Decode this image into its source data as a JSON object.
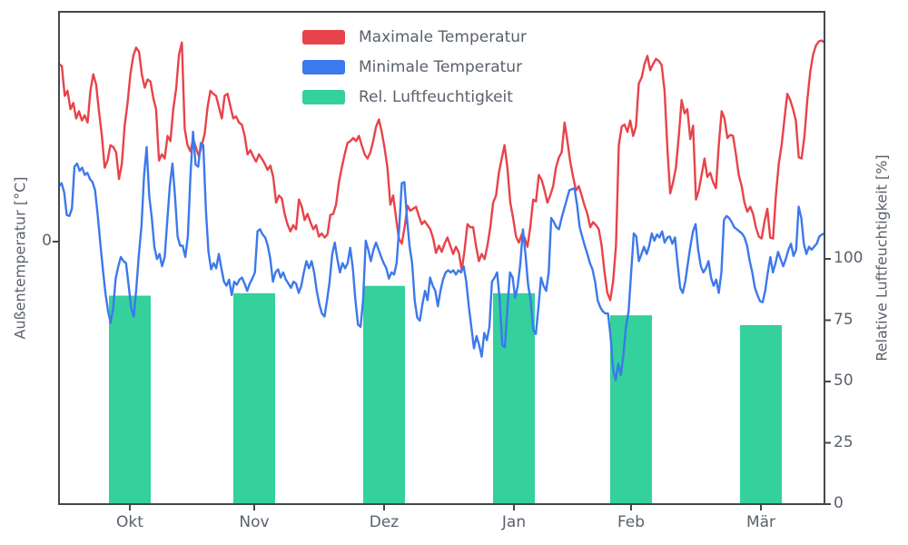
{
  "figure": {
    "background": "#ffffff"
  },
  "colors": {
    "max_temp": "#e8434a",
    "min_temp": "#3c79ec",
    "humidity": "#34d19c",
    "spine": "#43484f",
    "text": "#5a616b"
  },
  "legend": {
    "items": [
      {
        "label": "Maximale Temperatur",
        "color": "#e8434a"
      },
      {
        "label": "Minimale Temperatur",
        "color": "#3c79ec"
      },
      {
        "label": "Rel. Luftfeuchtigkeit",
        "color": "#34d19c"
      }
    ]
  },
  "axes": {
    "left": {
      "label": "Außentemperatur [°C]",
      "ticks": [
        "0"
      ]
    },
    "right": {
      "label": "Relative Luftfeuchtigkeit [%]",
      "ticks": [
        0,
        25,
        50,
        75,
        100
      ]
    },
    "bottom": {
      "ticks": [
        "Okt",
        "Nov",
        "Dez",
        "Jan",
        "Feb",
        "Mär"
      ]
    }
  },
  "chart_data": {
    "type": "mixed",
    "title": "",
    "xlabel": "",
    "x_tick_labels": [
      "Okt",
      "Nov",
      "Dez",
      "Jan",
      "Feb",
      "Mär"
    ],
    "left_ylabel": "Außentemperatur [°C]",
    "left_ylim": [
      -25.6,
      22.4
    ],
    "right_ylabel": "Relative Luftfeuchtigkeit [%]",
    "right_ylim": [
      0,
      200
    ],
    "grid": false,
    "legend_position": "upper center-left",
    "series": [
      {
        "name": "Maximale Temperatur",
        "type": "line",
        "axis": "left",
        "unit": "°C",
        "color": "#e8434a",
        "values": [
          17.3,
          17.1,
          14.2,
          14.7,
          12.9,
          13.5,
          12.0,
          12.7,
          11.8,
          12.3,
          11.6,
          14.7,
          16.3,
          15.3,
          12.7,
          10.3,
          7.2,
          7.9,
          9.4,
          9.2,
          8.7,
          6.1,
          7.6,
          11.3,
          13.5,
          16.3,
          18.1,
          18.9,
          18.5,
          16.3,
          15.0,
          15.8,
          15.6,
          14.0,
          12.9,
          7.9,
          8.5,
          8.1,
          10.3,
          9.8,
          12.9,
          14.9,
          18.2,
          19.4,
          11.0,
          9.4,
          8.8,
          10.0,
          9.1,
          8.3,
          9.4,
          10.5,
          13.1,
          14.7,
          14.4,
          14.2,
          13.1,
          12.0,
          14.2,
          14.4,
          13.2,
          12.0,
          12.2,
          11.6,
          11.4,
          10.3,
          8.5,
          8.9,
          8.3,
          7.8,
          8.5,
          8.1,
          7.6,
          7.0,
          7.4,
          6.3,
          3.8,
          4.5,
          4.2,
          2.7,
          1.7,
          1.0,
          1.6,
          1.2,
          4.1,
          3.4,
          2.1,
          2.7,
          1.9,
          1.2,
          1.6,
          0.5,
          0.8,
          0.4,
          0.7,
          2.6,
          2.7,
          3.6,
          5.8,
          7.2,
          8.5,
          9.6,
          9.8,
          10.1,
          9.8,
          10.3,
          9.4,
          8.5,
          8.1,
          8.7,
          9.8,
          11.2,
          11.9,
          10.7,
          9.1,
          7.2,
          3.6,
          4.5,
          2.3,
          0.3,
          -0.2,
          1.4,
          3.5,
          3.0,
          3.2,
          3.4,
          2.5,
          1.7,
          2.0,
          1.6,
          1.2,
          0.3,
          -1.1,
          -0.4,
          -1.0,
          -0.2,
          0.4,
          -0.4,
          -1.2,
          -0.5,
          -1.1,
          -2.8,
          -0.8,
          1.7,
          1.4,
          1.4,
          -0.4,
          -1.9,
          -1.2,
          -1.7,
          -0.4,
          1.4,
          3.8,
          4.5,
          6.7,
          8.1,
          9.4,
          7.2,
          3.8,
          2.3,
          0.5,
          -0.1,
          0.7,
          0.4,
          -0.5,
          1.4,
          4.1,
          3.9,
          6.5,
          6.0,
          5.0,
          3.8,
          4.5,
          5.4,
          7.2,
          8.2,
          8.7,
          11.6,
          9.8,
          7.8,
          6.3,
          5.0,
          5.4,
          4.5,
          3.5,
          2.7,
          1.4,
          1.9,
          1.6,
          1.2,
          -0.4,
          -3.0,
          -5.0,
          -5.7,
          -3.9,
          -0.4,
          9.4,
          11.2,
          11.4,
          10.7,
          11.8,
          10.3,
          11.2,
          15.4,
          16.0,
          17.3,
          18.1,
          16.7,
          17.3,
          17.8,
          17.6,
          17.2,
          14.7,
          9.1,
          4.7,
          5.8,
          7.2,
          10.3,
          13.8,
          12.5,
          12.9,
          10.0,
          11.3,
          4.1,
          5.0,
          6.5,
          8.1,
          6.3,
          6.7,
          5.8,
          5.2,
          9.4,
          12.7,
          12.0,
          10.1,
          10.4,
          10.3,
          8.5,
          6.5,
          5.4,
          3.8,
          2.9,
          3.4,
          2.7,
          1.4,
          0.5,
          0.3,
          1.9,
          3.2,
          0.4,
          0.3,
          4.5,
          7.6,
          9.4,
          12.0,
          14.4,
          13.8,
          12.9,
          11.8,
          8.2,
          8.1,
          10.3,
          13.8,
          16.5,
          18.2,
          19.1,
          19.5,
          19.6,
          19.4
        ]
      },
      {
        "name": "Minimale Temperatur",
        "type": "line",
        "axis": "left",
        "unit": "°C",
        "color": "#3c79ec",
        "values": [
          5.4,
          5.7,
          4.8,
          2.6,
          2.5,
          3.2,
          7.3,
          7.6,
          6.9,
          7.2,
          6.5,
          6.7,
          6.1,
          5.8,
          5.0,
          2.6,
          -0.1,
          -2.7,
          -5.0,
          -6.7,
          -7.9,
          -6.5,
          -3.6,
          -2.4,
          -1.5,
          -1.9,
          -2.1,
          -4.2,
          -6.5,
          -7.3,
          -4.5,
          -1.2,
          1.5,
          6.5,
          9.2,
          4.5,
          2.3,
          -0.5,
          -1.7,
          -1.2,
          -2.4,
          -1.5,
          2.0,
          5.5,
          7.6,
          4.5,
          0.5,
          -0.4,
          -0.4,
          -1.5,
          0.5,
          6.5,
          10.7,
          7.5,
          7.3,
          9.6,
          9.4,
          3.0,
          -1.0,
          -2.7,
          -2.1,
          -2.6,
          -1.2,
          -2.6,
          -3.9,
          -4.3,
          -3.7,
          -5.2,
          -3.9,
          -4.2,
          -3.7,
          -3.5,
          -4.1,
          -4.8,
          -4.1,
          -3.6,
          -3.0,
          1.0,
          1.2,
          0.7,
          0.4,
          -0.4,
          -1.7,
          -3.9,
          -3.0,
          -2.7,
          -3.5,
          -3.0,
          -3.7,
          -4.1,
          -4.5,
          -3.9,
          -4.1,
          -5.0,
          -4.3,
          -3.0,
          -1.9,
          -2.6,
          -1.9,
          -3.0,
          -4.8,
          -6.1,
          -7.0,
          -7.3,
          -5.7,
          -3.9,
          -1.2,
          -0.1,
          -1.7,
          -3.0,
          -2.1,
          -2.6,
          -2.1,
          -0.6,
          -2.6,
          -5.7,
          -8.1,
          -8.3,
          -5.7,
          0.1,
          -0.8,
          -1.9,
          -0.8,
          -0.1,
          -0.8,
          -1.5,
          -2.1,
          -2.6,
          -3.6,
          -3.0,
          -3.2,
          -2.1,
          1.4,
          5.7,
          5.8,
          2.3,
          -0.4,
          -2.1,
          -5.7,
          -7.4,
          -7.7,
          -6.1,
          -4.8,
          -5.7,
          -3.5,
          -4.3,
          -4.8,
          -6.3,
          -4.8,
          -3.7,
          -3.0,
          -2.8,
          -3.0,
          -2.8,
          -3.2,
          -2.8,
          -3.0,
          -2.4,
          -3.9,
          -6.3,
          -8.3,
          -10.4,
          -9.2,
          -10.1,
          -11.2,
          -8.9,
          -9.6,
          -8.3,
          -3.9,
          -3.5,
          -3.0,
          -5.7,
          -10.1,
          -10.3,
          -6.5,
          -3.0,
          -3.5,
          -5.5,
          -4.3,
          -2.1,
          1.2,
          -1.2,
          -4.2,
          -5.7,
          -8.6,
          -9.0,
          -6.5,
          -3.5,
          -4.3,
          -4.8,
          -3.0,
          2.3,
          1.9,
          1.4,
          1.2,
          2.3,
          3.2,
          4.1,
          5.0,
          5.1,
          5.2,
          3.6,
          1.4,
          0.5,
          -0.4,
          -1.2,
          -2.1,
          -2.7,
          -3.9,
          -5.7,
          -6.4,
          -6.8,
          -7.0,
          -7.0,
          -9.2,
          -12.5,
          -13.5,
          -11.9,
          -13.0,
          -11.0,
          -8.3,
          -6.8,
          -3.0,
          0.8,
          0.5,
          -1.9,
          -1.2,
          -0.5,
          -1.2,
          -0.4,
          0.8,
          0.1,
          0.7,
          0.4,
          1.0,
          -0.1,
          0.4,
          0.5,
          -0.2,
          0.4,
          -2.1,
          -4.5,
          -5.0,
          -3.9,
          -2.1,
          -0.4,
          1.0,
          1.7,
          -0.8,
          -2.4,
          -3.0,
          -2.6,
          -1.9,
          -3.5,
          -4.3,
          -3.7,
          -5.0,
          -3.0,
          2.1,
          2.5,
          2.3,
          1.9,
          1.4,
          1.2,
          1.0,
          0.8,
          0.4,
          -0.4,
          -1.9,
          -3.0,
          -4.5,
          -5.2,
          -5.8,
          -5.9,
          -4.8,
          -3.0,
          -1.5,
          -3.0,
          -2.1,
          -1.0,
          -1.7,
          -2.4,
          -1.7,
          -0.8,
          -0.2,
          -1.4,
          -0.8,
          3.4,
          2.3,
          -0.2,
          -1.2,
          -0.5,
          -0.8,
          -0.5,
          -0.2,
          0.5,
          0.7,
          0.8
        ]
      },
      {
        "name": "Rel. Luftfeuchtigkeit",
        "type": "bar",
        "axis": "right",
        "unit": "%",
        "color": "#34d19c",
        "categories": [
          "Okt",
          "Nov",
          "Dez",
          "Jan",
          "Feb",
          "Mär"
        ],
        "values": [
          85,
          86,
          89,
          86,
          77,
          73
        ]
      }
    ]
  }
}
